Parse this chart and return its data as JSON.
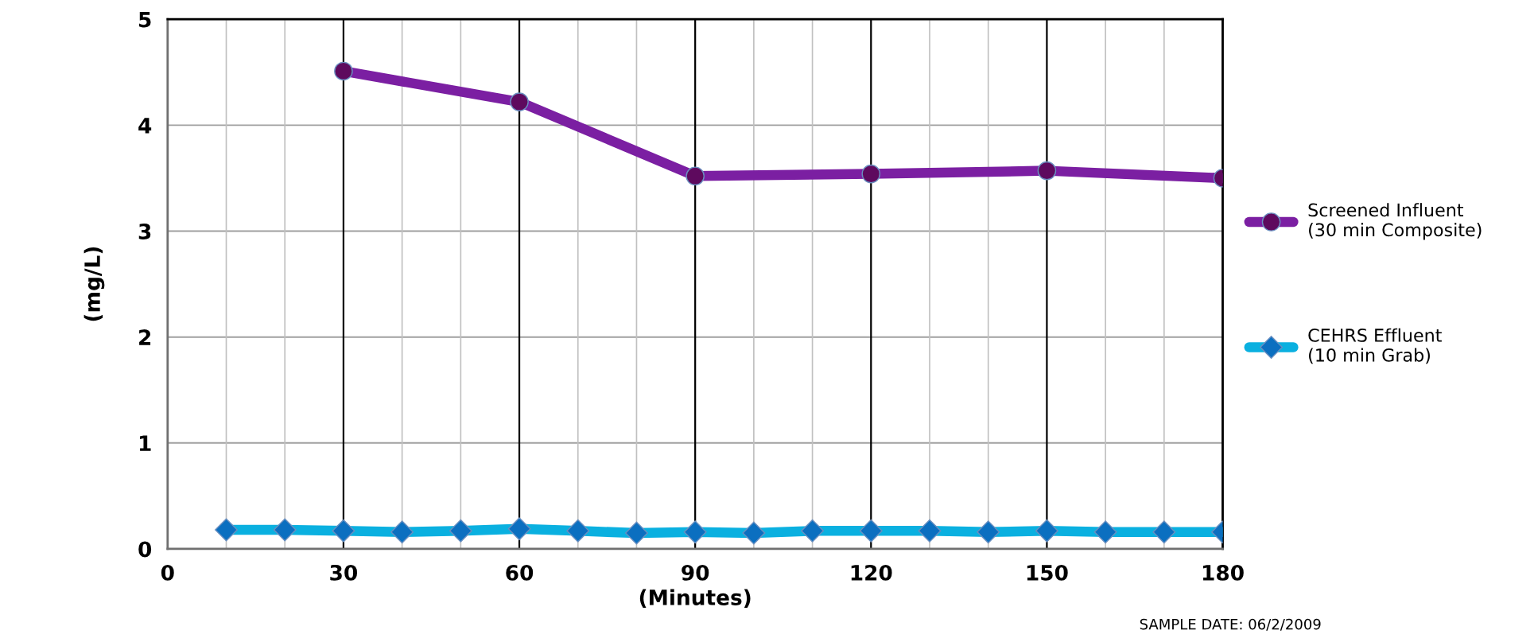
{
  "chart_data": {
    "type": "line",
    "xlabel": "(Minutes)",
    "ylabel": "(mg/L)",
    "xlim": [
      0,
      180
    ],
    "ylim": [
      0,
      5
    ],
    "xticks": [
      0,
      {
        "value": 10,
        "label": null
      },
      {
        "value": 20,
        "label": null
      },
      30,
      {
        "value": 40,
        "label": null
      },
      {
        "value": 50,
        "label": null
      },
      60,
      {
        "value": 70,
        "label": null
      },
      {
        "value": 80,
        "label": null
      },
      90,
      {
        "value": 100,
        "label": null
      },
      {
        "value": 110,
        "label": null
      },
      120,
      {
        "value": 130,
        "label": null
      },
      {
        "value": 140,
        "label": null
      },
      150,
      {
        "value": 160,
        "label": null
      },
      {
        "value": 170,
        "label": null
      },
      180
    ],
    "yticks": [
      0,
      1,
      2,
      3,
      4,
      5
    ],
    "grid": true,
    "legend": "right",
    "line_style": "solid",
    "series": [
      {
        "name": "Screened Influent\n(30 min Composite)",
        "color": "#7b1fa2",
        "marker": "circle",
        "x": [
          30,
          60,
          90,
          120,
          150,
          180
        ],
        "values": [
          4.51,
          4.22,
          3.52,
          3.54,
          3.57,
          3.5
        ]
      },
      {
        "name": "CEHRS Effluent\n(10 min Grab)",
        "color": "#0ab0e0",
        "marker": "diamond",
        "x": [
          10,
          20,
          30,
          40,
          50,
          60,
          70,
          80,
          90,
          100,
          110,
          120,
          130,
          140,
          150,
          160,
          170,
          180
        ],
        "values": [
          0.18,
          0.18,
          0.17,
          0.16,
          0.17,
          0.19,
          0.17,
          0.15,
          0.16,
          0.15,
          0.17,
          0.17,
          0.17,
          0.16,
          0.17,
          0.16,
          0.16,
          0.16
        ]
      }
    ],
    "annotations": [
      "SAMPLE DATE: 06/2/2009"
    ]
  }
}
